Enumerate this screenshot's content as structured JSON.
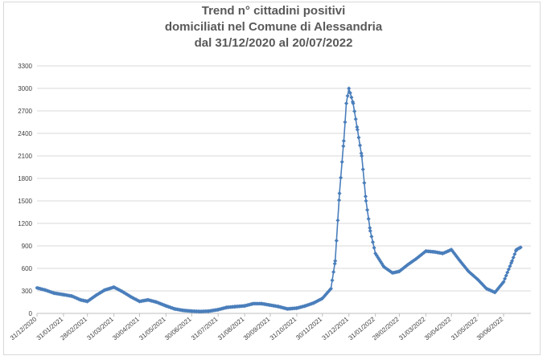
{
  "chart_data": {
    "type": "line",
    "title_lines": [
      "Trend n° cittadini positivi",
      "domiciliati nel Comune di Alessandria",
      "dal 31/12/2020 al 20/07/2022"
    ],
    "xlabel": "",
    "ylabel": "",
    "ylim": [
      0,
      3300
    ],
    "yticks": [
      0,
      300,
      600,
      900,
      1200,
      1500,
      1800,
      2100,
      2400,
      2700,
      3000,
      3300
    ],
    "xtick_labels": [
      "31/12/2020",
      "31/01/2021",
      "28/02/2021",
      "31/03/2021",
      "30/04/2021",
      "31/05/2021",
      "30/06/2021",
      "31/07/2021",
      "31/08/2021",
      "30/09/2021",
      "31/10/2021",
      "30/11/2021",
      "31/12/2021",
      "31/01/2022",
      "28/02/2022",
      "31/03/2022",
      "30/04/2022",
      "31/05/2022",
      "30/06/2022"
    ],
    "grid": "horizontal",
    "line_color": "#4a7ebb",
    "series": [
      {
        "x_days_keypoints_note": "",
        "points": [
          [
            "31/12/2020",
            340
          ],
          [
            "10/01/2021",
            310
          ],
          [
            "20/01/2021",
            270
          ],
          [
            "31/01/2021",
            250
          ],
          [
            "10/02/2021",
            230
          ],
          [
            "20/02/2021",
            180
          ],
          [
            "28/02/2021",
            160
          ],
          [
            "10/03/2021",
            240
          ],
          [
            "20/03/2021",
            310
          ],
          [
            "31/03/2021",
            350
          ],
          [
            "10/04/2021",
            290
          ],
          [
            "20/04/2021",
            220
          ],
          [
            "30/04/2021",
            160
          ],
          [
            "10/05/2021",
            180
          ],
          [
            "20/05/2021",
            150
          ],
          [
            "31/05/2021",
            100
          ],
          [
            "10/06/2021",
            60
          ],
          [
            "20/06/2021",
            40
          ],
          [
            "30/06/2021",
            30
          ],
          [
            "10/07/2021",
            25
          ],
          [
            "20/07/2021",
            30
          ],
          [
            "31/07/2021",
            50
          ],
          [
            "10/08/2021",
            80
          ],
          [
            "20/08/2021",
            90
          ],
          [
            "31/08/2021",
            100
          ],
          [
            "10/09/2021",
            130
          ],
          [
            "20/09/2021",
            130
          ],
          [
            "30/09/2021",
            110
          ],
          [
            "10/10/2021",
            90
          ],
          [
            "20/10/2021",
            60
          ],
          [
            "31/10/2021",
            70
          ],
          [
            "10/11/2021",
            100
          ],
          [
            "20/11/2021",
            140
          ],
          [
            "30/11/2021",
            200
          ],
          [
            "10/12/2021",
            330
          ],
          [
            "15/12/2021",
            700
          ],
          [
            "20/12/2021",
            1600
          ],
          [
            "25/12/2021",
            2300
          ],
          [
            "28/12/2021",
            2800
          ],
          [
            "31/12/2021",
            3000
          ],
          [
            "05/01/2022",
            2800
          ],
          [
            "10/01/2022",
            2450
          ],
          [
            "15/01/2022",
            2100
          ],
          [
            "20/01/2022",
            1500
          ],
          [
            "25/01/2022",
            1100
          ],
          [
            "31/01/2022",
            800
          ],
          [
            "10/02/2022",
            620
          ],
          [
            "20/02/2022",
            540
          ],
          [
            "28/02/2022",
            560
          ],
          [
            "10/03/2022",
            650
          ],
          [
            "20/03/2022",
            730
          ],
          [
            "31/03/2022",
            830
          ],
          [
            "10/04/2022",
            820
          ],
          [
            "20/04/2022",
            800
          ],
          [
            "30/04/2022",
            850
          ],
          [
            "10/05/2022",
            700
          ],
          [
            "20/05/2022",
            560
          ],
          [
            "31/05/2022",
            450
          ],
          [
            "10/06/2022",
            330
          ],
          [
            "20/06/2022",
            280
          ],
          [
            "30/06/2022",
            420
          ],
          [
            "10/07/2022",
            700
          ],
          [
            "15/07/2022",
            850
          ],
          [
            "20/07/2022",
            880
          ]
        ]
      }
    ]
  }
}
